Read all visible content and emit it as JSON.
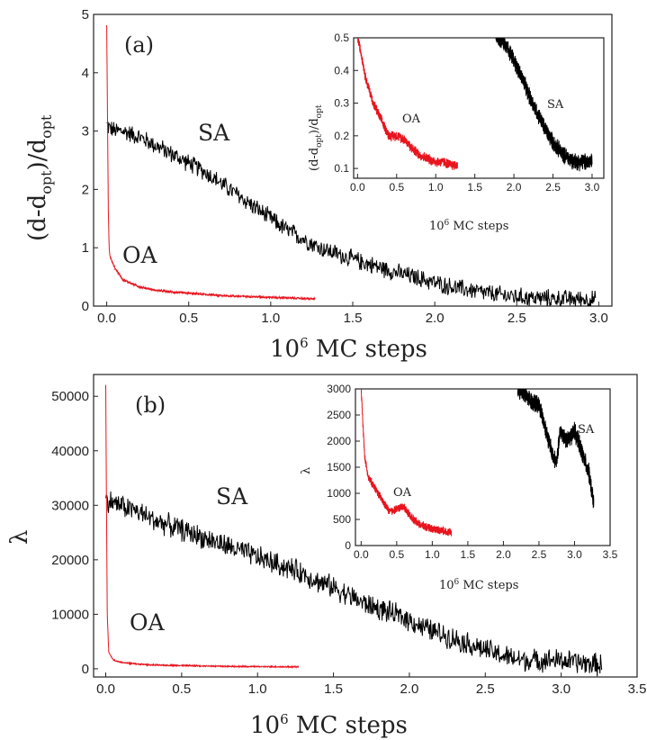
{
  "chart_data": [
    {
      "panel": "(a)",
      "type": "line",
      "xlabel": "10",
      "xlabel_sup": "6",
      "xlabel_rest": " MC steps",
      "ylabel": "(d-d",
      "ylabel_sub1": "opt",
      "ylabel_mid": ")/d",
      "ylabel_sub2": "opt",
      "xlim": [
        -0.08,
        3.08
      ],
      "ylim": [
        0,
        5
      ],
      "xticks": [
        "0.0",
        "0.5",
        "1.0",
        "1.5",
        "2.0",
        "2.5",
        "3.0"
      ],
      "yticks": [
        "0",
        "1",
        "2",
        "3",
        "4",
        "5"
      ],
      "series": [
        {
          "name": "SA",
          "color": "#000000",
          "x": [
            0.0,
            0.02,
            0.05,
            0.1,
            0.2,
            0.3,
            0.4,
            0.5,
            0.6,
            0.7,
            0.8,
            0.9,
            1.0,
            1.1,
            1.2,
            1.3,
            1.4,
            1.5,
            1.6,
            1.7,
            1.8,
            1.9,
            2.0,
            2.1,
            2.2,
            2.3,
            2.4,
            2.5,
            2.6,
            2.7,
            2.8,
            2.9,
            2.98
          ],
          "y": [
            3.1,
            3.05,
            3.0,
            3.0,
            2.9,
            2.75,
            2.6,
            2.45,
            2.3,
            2.1,
            1.9,
            1.7,
            1.5,
            1.3,
            1.15,
            1.0,
            0.9,
            0.8,
            0.72,
            0.63,
            0.55,
            0.48,
            0.4,
            0.33,
            0.28,
            0.23,
            0.19,
            0.16,
            0.14,
            0.13,
            0.12,
            0.12,
            0.11
          ],
          "noise": 0.18
        },
        {
          "name": "OA",
          "color": "#e8141e",
          "x": [
            0.0,
            0.005,
            0.01,
            0.015,
            0.02,
            0.05,
            0.1,
            0.2,
            0.3,
            0.4,
            0.5,
            0.6,
            0.7,
            0.8,
            0.9,
            1.0,
            1.1,
            1.2,
            1.27
          ],
          "y": [
            4.8,
            3.2,
            1.6,
            1.0,
            0.85,
            0.65,
            0.45,
            0.33,
            0.27,
            0.24,
            0.22,
            0.2,
            0.18,
            0.17,
            0.16,
            0.15,
            0.14,
            0.13,
            0.12
          ],
          "noise": 0.02
        }
      ],
      "inset": {
        "xlabel": "10",
        "xlabel_sup": "6",
        "xlabel_rest": " MC steps",
        "ylabel": "(d-d",
        "ylabel_sub1": "opt",
        "ylabel_mid": ")/d",
        "ylabel_sub2": "opt",
        "xlim": [
          -0.05,
          3.15
        ],
        "ylim": [
          0.07,
          0.5
        ],
        "xticks": [
          "0.0",
          "0.5",
          "1.0",
          "1.5",
          "2.0",
          "2.5",
          "3.0"
        ],
        "yticks": [
          "0.1",
          "0.2",
          "0.3",
          "0.4",
          "0.5"
        ],
        "series": [
          {
            "name": "SA",
            "color": "#000000",
            "x": [
              1.75,
              1.8,
              1.9,
              2.0,
              2.1,
              2.2,
              2.3,
              2.4,
              2.5,
              2.6,
              2.7,
              2.8,
              2.9,
              3.0
            ],
            "y": [
              0.52,
              0.5,
              0.48,
              0.43,
              0.38,
              0.32,
              0.27,
              0.22,
              0.18,
              0.15,
              0.13,
              0.12,
              0.12,
              0.12
            ],
            "noise": 0.03
          },
          {
            "name": "OA",
            "color": "#e8141e",
            "x": [
              0.0,
              0.05,
              0.1,
              0.2,
              0.3,
              0.4,
              0.5,
              0.6,
              0.7,
              0.8,
              0.9,
              1.0,
              1.1,
              1.2,
              1.28
            ],
            "y": [
              0.5,
              0.45,
              0.38,
              0.3,
              0.25,
              0.2,
              0.2,
              0.19,
              0.16,
              0.14,
              0.13,
              0.12,
              0.12,
              0.11,
              0.11
            ],
            "noise": 0.018
          }
        ]
      }
    },
    {
      "panel": "(b)",
      "type": "line",
      "xlabel": "10",
      "xlabel_sup": "6",
      "xlabel_rest": " MC steps",
      "ylabel": "λ",
      "xlim": [
        -0.08,
        3.5
      ],
      "ylim": [
        -1500,
        54000
      ],
      "xticks": [
        "0.0",
        "0.5",
        "1.0",
        "1.5",
        "2.0",
        "2.5",
        "3.0",
        "3.5"
      ],
      "yticks": [
        "0",
        "10000",
        "20000",
        "30000",
        "40000",
        "50000"
      ],
      "series": [
        {
          "name": "SA",
          "color": "#000000",
          "x": [
            0.0,
            0.05,
            0.1,
            0.2,
            0.3,
            0.4,
            0.5,
            0.6,
            0.7,
            0.8,
            0.9,
            1.0,
            1.1,
            1.2,
            1.3,
            1.4,
            1.5,
            1.6,
            1.7,
            1.8,
            1.9,
            2.0,
            2.1,
            2.2,
            2.3,
            2.4,
            2.5,
            2.6,
            2.7,
            2.8,
            2.9,
            3.0,
            3.1,
            3.2,
            3.27
          ],
          "y": [
            31000,
            30500,
            30000,
            29000,
            27500,
            26500,
            25500,
            24500,
            23500,
            22500,
            21500,
            20500,
            19500,
            18500,
            17500,
            16000,
            15000,
            13500,
            12000,
            11000,
            10000,
            9000,
            7500,
            6500,
            5500,
            4500,
            3500,
            2500,
            1800,
            1500,
            1700,
            1500,
            1200,
            900,
            700
          ],
          "noise": 2400
        },
        {
          "name": "OA",
          "color": "#e8141e",
          "x": [
            0.0,
            0.005,
            0.01,
            0.02,
            0.05,
            0.1,
            0.2,
            0.3,
            0.4,
            0.5,
            0.6,
            0.7,
            0.8,
            0.9,
            1.0,
            1.1,
            1.2,
            1.27
          ],
          "y": [
            52000,
            30000,
            10000,
            3000,
            1600,
            1200,
            900,
            700,
            650,
            600,
            550,
            500,
            450,
            420,
            400,
            380,
            360,
            350
          ],
          "noise": 120
        }
      ],
      "inset": {
        "xlabel": "10",
        "xlabel_sup": "6",
        "xlabel_rest": " MC steps",
        "ylabel": "λ",
        "xlim": [
          -0.08,
          3.5
        ],
        "ylim": [
          0,
          3000
        ],
        "xticks": [
          "0.0",
          "0.5",
          "1.0",
          "1.5",
          "2.0",
          "2.5",
          "3.0",
          "3.5"
        ],
        "yticks": [
          "0",
          "500",
          "1000",
          "1500",
          "2000",
          "2500",
          "3000"
        ],
        "series": [
          {
            "name": "SA",
            "color": "#000000",
            "x": [
              2.2,
              2.3,
              2.4,
              2.5,
              2.6,
              2.7,
              2.75,
              2.8,
              2.9,
              3.0,
              3.1,
              3.2,
              3.27
            ],
            "y": [
              3000,
              2900,
              2750,
              2700,
              2200,
              1700,
              1600,
              2200,
              2000,
              2200,
              1800,
              1400,
              800
            ],
            "noise": 200
          },
          {
            "name": "OA",
            "color": "#e8141e",
            "x": [
              0.0,
              0.03,
              0.05,
              0.1,
              0.2,
              0.3,
              0.4,
              0.5,
              0.6,
              0.7,
              0.8,
              0.9,
              1.0,
              1.1,
              1.2,
              1.27
            ],
            "y": [
              3000,
              2200,
              1700,
              1300,
              1100,
              850,
              650,
              700,
              750,
              550,
              420,
              360,
              320,
              300,
              270,
              250
            ],
            "noise": 90
          }
        ]
      }
    }
  ]
}
